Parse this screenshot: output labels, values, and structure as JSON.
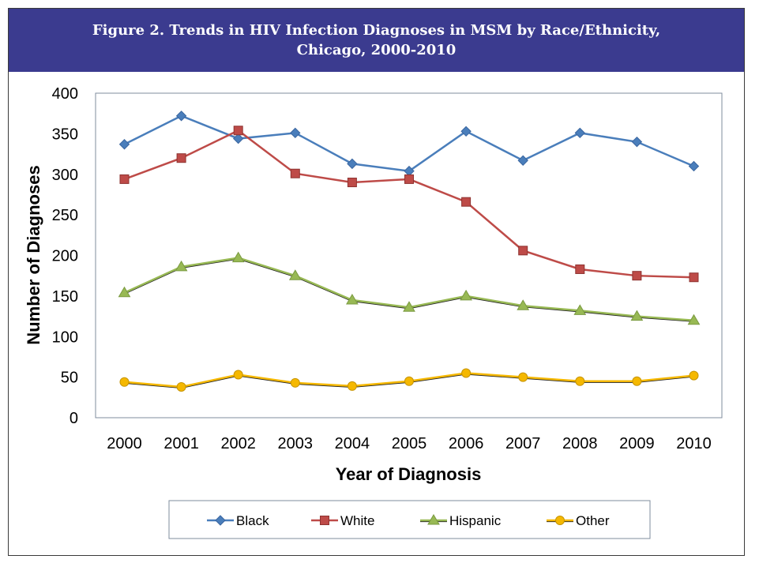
{
  "title_line1": "Figure 2. Trends in HIV Infection Diagnoses in MSM by Race/Ethnicity,",
  "title_line2": "Chicago, 2000-2010",
  "chart_data": {
    "type": "line",
    "title": "Figure 2. Trends in HIV Infection Diagnoses in MSM by Race/Ethnicity, Chicago, 2000-2010",
    "xlabel": "Year of Diagnosis",
    "ylabel": "Number of Diagnoses",
    "categories": [
      "2000",
      "2001",
      "2002",
      "2003",
      "2004",
      "2005",
      "2006",
      "2007",
      "2008",
      "2009",
      "2010"
    ],
    "ylim": [
      0,
      400
    ],
    "yticks": [
      "0",
      "50",
      "100",
      "150",
      "200",
      "250",
      "300",
      "350",
      "400"
    ],
    "grid": false,
    "legend_position": "bottom",
    "series": [
      {
        "name": "Black",
        "color": "#4a7ebb",
        "marker": "diamond",
        "values": [
          337,
          372,
          344,
          351,
          313,
          304,
          353,
          317,
          351,
          340,
          310
        ]
      },
      {
        "name": "White",
        "color": "#be4b48",
        "marker": "square",
        "values": [
          294,
          320,
          354,
          301,
          290,
          294,
          266,
          206,
          183,
          175,
          173
        ]
      },
      {
        "name": "Hispanic",
        "color": "#98b954",
        "marker": "triangle",
        "values": [
          154,
          186,
          197,
          175,
          145,
          136,
          150,
          138,
          132,
          125,
          120
        ]
      },
      {
        "name": "Other",
        "color": "#f5b800",
        "marker": "circle",
        "values": [
          44,
          38,
          53,
          43,
          39,
          45,
          55,
          50,
          45,
          45,
          52
        ]
      }
    ]
  }
}
